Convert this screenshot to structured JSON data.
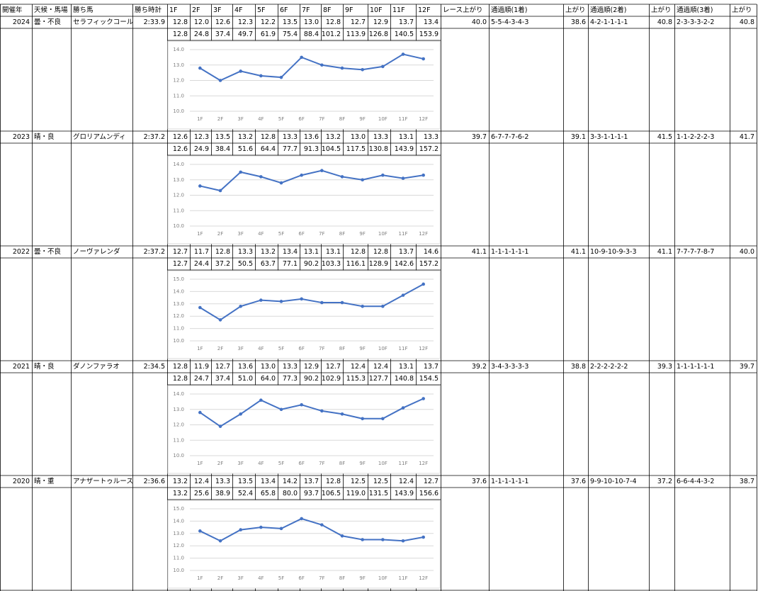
{
  "header": [
    "開催年",
    "天候・馬場",
    "勝ち馬",
    "勝ち時計",
    "1F",
    "2F",
    "3F",
    "4F",
    "5F",
    "6F",
    "7F",
    "8F",
    "9F",
    "10F",
    "11F",
    "12F",
    "レース上がり",
    "通過順(1着)",
    "上がり",
    "通過順(2着)",
    "上がり",
    "通過順(3着)",
    "上がり"
  ],
  "races": [
    {
      "year": 2024,
      "weather": "曇・不良",
      "winner": "セラフィックコール",
      "time": "2:33.9",
      "laps": [
        "12.8",
        "12.0",
        "12.6",
        "12.3",
        "12.2",
        "13.5",
        "13.0",
        "12.8",
        "12.7",
        "12.9",
        "13.7",
        "13.4"
      ],
      "cumulative": [
        "12.8",
        "24.8",
        "37.4",
        "49.7",
        "61.9",
        "75.4",
        "88.4",
        "101.2",
        "113.9",
        "126.8",
        "140.5",
        "153.9"
      ],
      "race_agari": "40.0",
      "passing_1st": "5-5-4-3-4-3",
      "agari_1st": "38.6",
      "passing_2nd": "4-2-1-1-1-1",
      "agari_2nd": "40.8",
      "passing_3rd": "2-3-3-3-2-2",
      "agari_3rd": "40.8",
      "chart": {
        "type": "line",
        "color": "#4472c4",
        "grid": true,
        "categories": [
          "1F",
          "2F",
          "3F",
          "4F",
          "5F",
          "6F",
          "7F",
          "8F",
          "9F",
          "10F",
          "11F",
          "12F"
        ],
        "values": [
          12.8,
          12.0,
          12.6,
          12.3,
          12.2,
          13.5,
          13.0,
          12.8,
          12.7,
          12.9,
          13.7,
          13.4
        ],
        "ylim": [
          10,
          14
        ],
        "yticks": [
          {
            "value": 10,
            "label": "10.0"
          },
          {
            "value": 11,
            "label": "11.0"
          },
          {
            "value": 12,
            "label": "12.0"
          },
          {
            "value": 13,
            "label": "13.0"
          },
          {
            "value": 14,
            "label": "14.0"
          }
        ]
      }
    },
    {
      "year": 2023,
      "weather": "晴・良",
      "winner": "グロリアムンディ",
      "time": "2:37.2",
      "laps": [
        "12.6",
        "12.3",
        "13.5",
        "13.2",
        "12.8",
        "13.3",
        "13.6",
        "13.2",
        "13.0",
        "13.3",
        "13.1",
        "13.3"
      ],
      "cumulative": [
        "12.6",
        "24.9",
        "38.4",
        "51.6",
        "64.4",
        "77.7",
        "91.3",
        "104.5",
        "117.5",
        "130.8",
        "143.9",
        "157.2"
      ],
      "race_agari": "39.7",
      "passing_1st": "6-7-7-7-6-2",
      "agari_1st": "39.1",
      "passing_2nd": "3-3-1-1-1-1",
      "agari_2nd": "41.5",
      "passing_3rd": "1-1-2-2-2-3",
      "agari_3rd": "41.7",
      "chart": {
        "type": "line",
        "color": "#4472c4",
        "grid": true,
        "categories": [
          "1F",
          "2F",
          "3F",
          "4F",
          "5F",
          "6F",
          "7F",
          "8F",
          "9F",
          "10F",
          "11F",
          "12F"
        ],
        "values": [
          12.6,
          12.3,
          13.5,
          13.2,
          12.8,
          13.3,
          13.6,
          13.2,
          13.0,
          13.3,
          13.1,
          13.3
        ],
        "ylim": [
          10,
          14
        ],
        "yticks": [
          {
            "value": 10,
            "label": "10.0"
          },
          {
            "value": 11,
            "label": "11.0"
          },
          {
            "value": 12,
            "label": "12.0"
          },
          {
            "value": 13,
            "label": "13.0"
          },
          {
            "value": 14,
            "label": "14.0"
          }
        ]
      }
    },
    {
      "year": 2022,
      "weather": "曇・不良",
      "winner": "ノーヴァレンダ",
      "time": "2:37.2",
      "laps": [
        "12.7",
        "11.7",
        "12.8",
        "13.3",
        "13.2",
        "13.4",
        "13.1",
        "13.1",
        "12.8",
        "12.8",
        "13.7",
        "14.6"
      ],
      "cumulative": [
        "12.7",
        "24.4",
        "37.2",
        "50.5",
        "63.7",
        "77.1",
        "90.2",
        "103.3",
        "116.1",
        "128.9",
        "142.6",
        "157.2"
      ],
      "race_agari": "41.1",
      "passing_1st": "1-1-1-1-1-1",
      "agari_1st": "41.1",
      "passing_2nd": "10-9-10-9-3-3",
      "agari_2nd": "41.1",
      "passing_3rd": "7-7-7-7-8-7",
      "agari_3rd": "40.0",
      "chart": {
        "type": "line",
        "color": "#4472c4",
        "grid": true,
        "categories": [
          "1F",
          "2F",
          "3F",
          "4F",
          "5F",
          "6F",
          "7F",
          "8F",
          "9F",
          "10F",
          "11F",
          "12F"
        ],
        "values": [
          12.7,
          11.7,
          12.8,
          13.3,
          13.2,
          13.4,
          13.1,
          13.1,
          12.8,
          12.8,
          13.7,
          14.6
        ],
        "ylim": [
          10,
          15
        ],
        "yticks": [
          {
            "value": 10,
            "label": "10.0"
          },
          {
            "value": 11,
            "label": "11.0"
          },
          {
            "value": 12,
            "label": "12.0"
          },
          {
            "value": 13,
            "label": "13.0"
          },
          {
            "value": 14,
            "label": "14.0"
          },
          {
            "value": 15,
            "label": "15.0"
          }
        ]
      }
    },
    {
      "year": 2021,
      "weather": "晴・良",
      "winner": "ダノンファラオ",
      "time": "2:34.5",
      "laps": [
        "12.8",
        "11.9",
        "12.7",
        "13.6",
        "13.0",
        "13.3",
        "12.9",
        "12.7",
        "12.4",
        "12.4",
        "13.1",
        "13.7"
      ],
      "cumulative": [
        "12.8",
        "24.7",
        "37.4",
        "51.0",
        "64.0",
        "77.3",
        "90.2",
        "102.9",
        "115.3",
        "127.7",
        "140.8",
        "154.5"
      ],
      "race_agari": "39.2",
      "passing_1st": "3-4-3-3-3-3",
      "agari_1st": "38.8",
      "passing_2nd": "2-2-2-2-2-2",
      "agari_2nd": "39.3",
      "passing_3rd": "1-1-1-1-1-1",
      "agari_3rd": "39.7",
      "chart": {
        "type": "line",
        "color": "#4472c4",
        "grid": true,
        "categories": [
          "1F",
          "2F",
          "3F",
          "4F",
          "5F",
          "6F",
          "7F",
          "8F",
          "9F",
          "10F",
          "11F",
          "12F"
        ],
        "values": [
          12.8,
          11.9,
          12.7,
          13.6,
          13.0,
          13.3,
          12.9,
          12.7,
          12.4,
          12.4,
          13.1,
          13.7
        ],
        "ylim": [
          10,
          14
        ],
        "yticks": [
          {
            "value": 10,
            "label": "10.0"
          },
          {
            "value": 11,
            "label": "11.0"
          },
          {
            "value": 12,
            "label": "12.0"
          },
          {
            "value": 13,
            "label": "13.0"
          },
          {
            "value": 14,
            "label": "14.0"
          }
        ]
      }
    },
    {
      "year": 2020,
      "weather": "晴・重",
      "winner": "アナザートゥルース",
      "time": "2:36.6",
      "laps": [
        "13.2",
        "12.4",
        "13.3",
        "13.5",
        "13.4",
        "14.2",
        "13.7",
        "12.8",
        "12.5",
        "12.5",
        "12.4",
        "12.7"
      ],
      "cumulative": [
        "13.2",
        "25.6",
        "38.9",
        "52.4",
        "65.8",
        "80.0",
        "93.7",
        "106.5",
        "119.0",
        "131.5",
        "143.9",
        "156.6"
      ],
      "race_agari": "37.6",
      "passing_1st": "1-1-1-1-1-1",
      "agari_1st": "37.6",
      "passing_2nd": "9-9-10-10-7-4",
      "agari_2nd": "37.2",
      "passing_3rd": "6-6-4-4-3-2",
      "agari_3rd": "38.7",
      "chart": {
        "type": "line",
        "color": "#4472c4",
        "grid": true,
        "categories": [
          "1F",
          "2F",
          "3F",
          "4F",
          "5F",
          "6F",
          "7F",
          "8F",
          "9F",
          "10F",
          "11F",
          "12F"
        ],
        "values": [
          13.2,
          12.4,
          13.3,
          13.5,
          13.4,
          14.2,
          13.7,
          12.8,
          12.5,
          12.5,
          12.4,
          12.7
        ],
        "ylim": [
          10,
          15
        ],
        "yticks": [
          {
            "value": 10,
            "label": "10.0"
          },
          {
            "value": 11,
            "label": "11.0"
          },
          {
            "value": 12,
            "label": "12.0"
          },
          {
            "value": 13,
            "label": "13.0"
          },
          {
            "value": 14,
            "label": "14.0"
          },
          {
            "value": 15,
            "label": "15.0"
          }
        ]
      }
    }
  ]
}
